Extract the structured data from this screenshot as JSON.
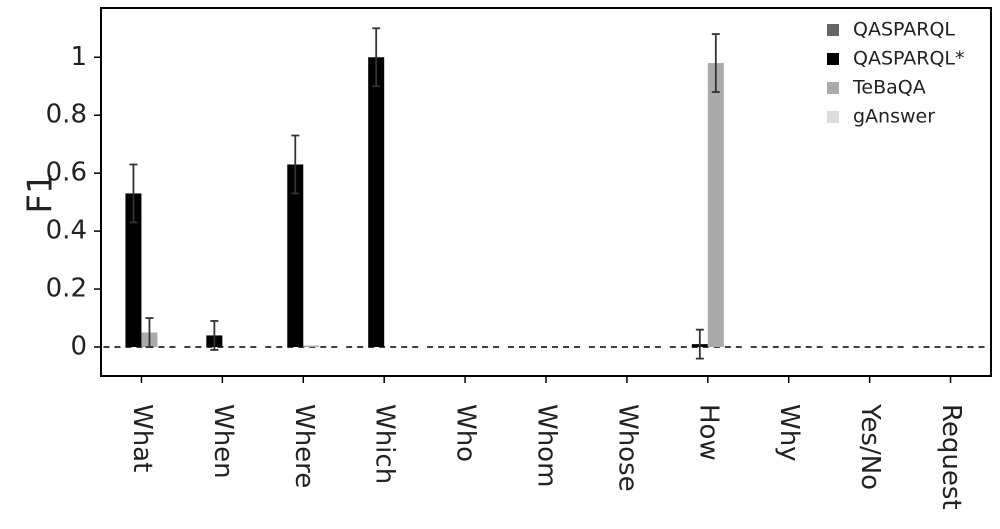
{
  "chart_data": {
    "type": "bar",
    "y_label": "F1",
    "categories": [
      "What",
      "When",
      "Where",
      "Which",
      "Who",
      "Whom",
      "Whose",
      "How",
      "Why",
      "Yes/No",
      "Request"
    ],
    "series": [
      {
        "name": "QASPARQL",
        "color": "#666666",
        "values": [
          0,
          0,
          0,
          0,
          0,
          0,
          0,
          0,
          0,
          0,
          0
        ]
      },
      {
        "name": "QASPARQL*",
        "color": "#000000",
        "values": [
          0.53,
          0.04,
          0.63,
          1.0,
          0,
          0,
          0,
          0.01,
          0,
          0,
          0
        ],
        "errors": [
          0.1,
          0.05,
          0.1,
          0.1,
          null,
          null,
          null,
          0.05,
          null,
          null,
          null
        ]
      },
      {
        "name": "TeBaQA",
        "color": "#aaaaaa",
        "values": [
          0.05,
          0,
          0.005,
          0,
          0,
          0,
          0,
          0.98,
          0,
          0,
          0
        ],
        "errors": [
          0.05,
          null,
          null,
          null,
          null,
          null,
          null,
          0.1,
          null,
          null,
          null
        ]
      },
      {
        "name": "gAnswer",
        "color": "#dddddd",
        "values": [
          0,
          0,
          0,
          0,
          0,
          0,
          0,
          0,
          0,
          0,
          0
        ]
      }
    ],
    "ylim": [
      -0.1,
      1.17
    ],
    "yticks": [
      0,
      0.2,
      0.4,
      0.6,
      0.8,
      1
    ],
    "legend": "top-right"
  }
}
